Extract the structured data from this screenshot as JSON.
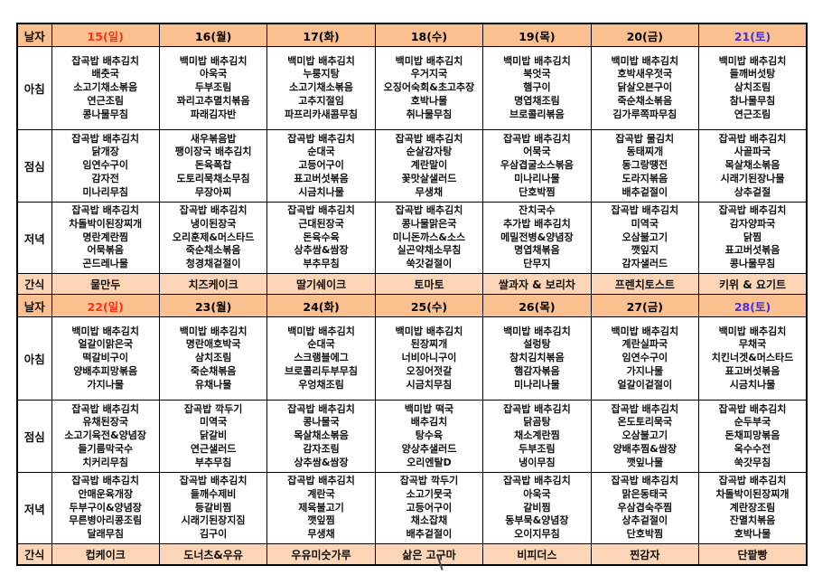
{
  "palette": {
    "date_row_bg": "#fac090",
    "snack_row_bg": "#fbd5b5",
    "border": "#000000",
    "sunday_text": "#ff3118",
    "saturday_text": "#4630d8",
    "weekday_text": "#000000"
  },
  "row_labels": {
    "date": "날자",
    "breakfast": "아침",
    "lunch": "점심",
    "dinner": "저녁",
    "snack": "간식"
  },
  "weeks": [
    {
      "dates": [
        {
          "text": "15(일)",
          "color": "#ff3118"
        },
        {
          "text": "16(월)",
          "color": "#000000"
        },
        {
          "text": "17(화)",
          "color": "#000000"
        },
        {
          "text": "18(수)",
          "color": "#000000"
        },
        {
          "text": "19(목)",
          "color": "#000000"
        },
        {
          "text": "20(금)",
          "color": "#000000"
        },
        {
          "text": "21(토)",
          "color": "#4630d8"
        }
      ],
      "breakfast": [
        [
          "잡곡밥 배추김치",
          "배춧국",
          "소고기채소볶음",
          "연근조림",
          "콩나물무침"
        ],
        [
          "백미밥 배추김치",
          "아욱국",
          "두부조림",
          "꽈리고추멸치볶음",
          "파래김자반"
        ],
        [
          "백미밥 배추김치",
          "누룽지탕",
          "소고기채소볶음",
          "고추지절임",
          "파프리카새콤무침"
        ],
        [
          "백미밥 배추김치",
          "우거지국",
          "오징어숙회&초고추장",
          "호박나물",
          "취나물무침"
        ],
        [
          "백미밥 배추김치",
          "북엇국",
          "햄구이",
          "명엽채조림",
          "브로콜리볶음"
        ],
        [
          "백미밥 배추김치",
          "호박새우젓국",
          "닭살오븐구이",
          "죽순채소볶음",
          "김가루쪽파무침"
        ],
        [
          "백미밥 배추김치",
          "들깨버섯탕",
          "삼치조림",
          "참나물무침",
          "연근조림"
        ]
      ],
      "lunch": [
        [
          "잡곡밥 배추김치",
          "닭개장",
          "임연수구이",
          "감자전",
          "미나리무침"
        ],
        [
          "새우볶음밥",
          "팽이장국 배추김치",
          "돈육폭찹",
          "도토리묵채소무침",
          "무장아찌"
        ],
        [
          "잡곡밥 배추김치",
          "순대국",
          "고등어구이",
          "표고버섯볶음",
          "시금치나물"
        ],
        [
          "잡곡밥 배추김치",
          "순살감자탕",
          "계란말이",
          "꽃맛살샐러드",
          "무생채"
        ],
        [
          "잡곡밥 배추김치",
          "어묵국",
          "우삼겹굴소스볶음",
          "미나리나물",
          "단호박찜"
        ],
        [
          "잡곡밥 물김치",
          "동태찌개",
          "동그랑땡전",
          "도라지볶음",
          "배추겉절이"
        ],
        [
          "잡곡밥 배추김치",
          "사골파국",
          "목살채소볶음",
          "시래기된장나물",
          "상추겉절"
        ]
      ],
      "dinner": [
        [
          "잡곡밥 배추김치",
          "차돌박이된장찌개",
          "명란계란찜",
          "어묵볶음",
          "곤드레나물"
        ],
        [
          "잡곡밥 배추김치",
          "냉이된장국",
          "오리훈제&머스타드",
          "죽순채소볶음",
          "청경채겉절이"
        ],
        [
          "잡곡밥 배추김치",
          "근대된장국",
          "돈육수육",
          "상추쌈&쌈장",
          "부추무침"
        ],
        [
          "잡곡밥 배추김치",
          "콩나물맑은국",
          "미니돈까스&소스",
          "실곤약채소무침",
          "쑥갓겉절이"
        ],
        [
          "잔치국수",
          "추가밥 배추김치",
          "메밀전병&양념장",
          "명엽채볶음",
          "단무지"
        ],
        [
          "잡곡밥 배추김치",
          "미역국",
          "오삼불고기",
          "깻잎지",
          "감자샐러드"
        ],
        [
          "잡곡밥 배추김치",
          "감자양파국",
          "닭찜",
          "표고버섯볶음",
          "콩나물무침"
        ]
      ],
      "snack": [
        "물만두",
        "치즈케이크",
        "딸기쉐이크",
        "토마토",
        "쌀과자 & 보리차",
        "프렌치토스트",
        "키위 & 요기트"
      ]
    },
    {
      "dates": [
        {
          "text": "22(일)",
          "color": "#ff3118"
        },
        {
          "text": "23(월)",
          "color": "#000000"
        },
        {
          "text": "24(화)",
          "color": "#000000"
        },
        {
          "text": "25(수)",
          "color": "#000000"
        },
        {
          "text": "26(목)",
          "color": "#000000"
        },
        {
          "text": "27(금)",
          "color": "#000000"
        },
        {
          "text": "28(토)",
          "color": "#4630d8"
        }
      ],
      "breakfast": [
        [
          "백미밥 배추김치",
          "얼갈이맑은국",
          "떡갈비구이",
          "양배추피망볶음",
          "가지나물"
        ],
        [
          "백미밥 배추김치",
          "명란애호박국",
          "삼치조림",
          "죽순채볶음",
          "유채나물"
        ],
        [
          "백미밥 배추김치",
          "순대국",
          "스크램블에그",
          "브로콜리두부무침",
          "우엉채조림"
        ],
        [
          "백미밥 배추김치",
          "된장찌개",
          "너비아니구이",
          "오징어젓갈",
          "시금치무침"
        ],
        [
          "백미밥 배추김치",
          "설렁탕",
          "참치김치볶음",
          "햄감자볶음",
          "미나리나물"
        ],
        [
          "백미밥 배추김치",
          "계란실파국",
          "임연수구이",
          "가지나물",
          "얼갈이겉절이"
        ],
        [
          "백미밥 배추김치",
          "무채국",
          "치킨너겟&머스타드",
          "표고버섯볶음",
          "시금치나물"
        ]
      ],
      "lunch": [
        [
          "잡곡밥 배추김치",
          "유채된장국",
          "소고기육전&양념장",
          "들기름막국수",
          "치커리무침"
        ],
        [
          "잡곡밥 깍두기",
          "미역국",
          "닭갈비",
          "연근샐러드",
          "부추무침"
        ],
        [
          "잡곡밥 배추김치",
          "콩나물국",
          "목살채소볶음",
          "감자조림",
          "상추쌈&쌈장"
        ],
        [
          "백미밥 떡국",
          "배추김치",
          "탕수육",
          "양상추샐러드",
          "오리엔탈D"
        ],
        [
          "잡곡밥 배추김치",
          "닭곰탕",
          "채소계란찜",
          "두부조림",
          "냉이무침"
        ],
        [
          "잡곡밥 배추김치",
          "온도토리묵국",
          "오삼불고기",
          "양배추찜&쌈장",
          "깻잎나물"
        ],
        [
          "잡곡밥 배추김치",
          "순두부국",
          "돈채피망볶음",
          "옥수수전",
          "쑥갓무침"
        ]
      ],
      "dinner": [
        [
          "잡곡밥 배추김치",
          "안매운육개장",
          "두부구이&양념장",
          "무른병아리콩조림",
          "달래무침"
        ],
        [
          "잡곡밥 배추김치",
          "들깨수제비",
          "등갈비찜",
          "시래기된장지짐",
          "김구이"
        ],
        [
          "잡곡밥 배추김치",
          "계란국",
          "제육불고기",
          "깻잎찜",
          "무생채"
        ],
        [
          "잡곡밥 깍두기",
          "소고기뭇국",
          "고등어구이",
          "채소잡채",
          "배추겉절이"
        ],
        [
          "잡곡밥 배추김치",
          "아욱국",
          "갈비찜",
          "동부묵&양념장",
          "오이지무침"
        ],
        [
          "잡곡밥 배추김치",
          "맑은동태국",
          "우삼겹숙주찜",
          "상추겉절이",
          "단호박찜"
        ],
        [
          "잡곡밥 배추김치",
          "차돌박이된장찌개",
          "계란장조림",
          "잔멸치볶음",
          "호박나물"
        ]
      ],
      "snack": [
        "컵케이크",
        "도너츠&우유",
        "우유미숫가루",
        "삶은 고구마",
        "비피더스",
        "찐감자",
        "단팥빵"
      ]
    }
  ]
}
